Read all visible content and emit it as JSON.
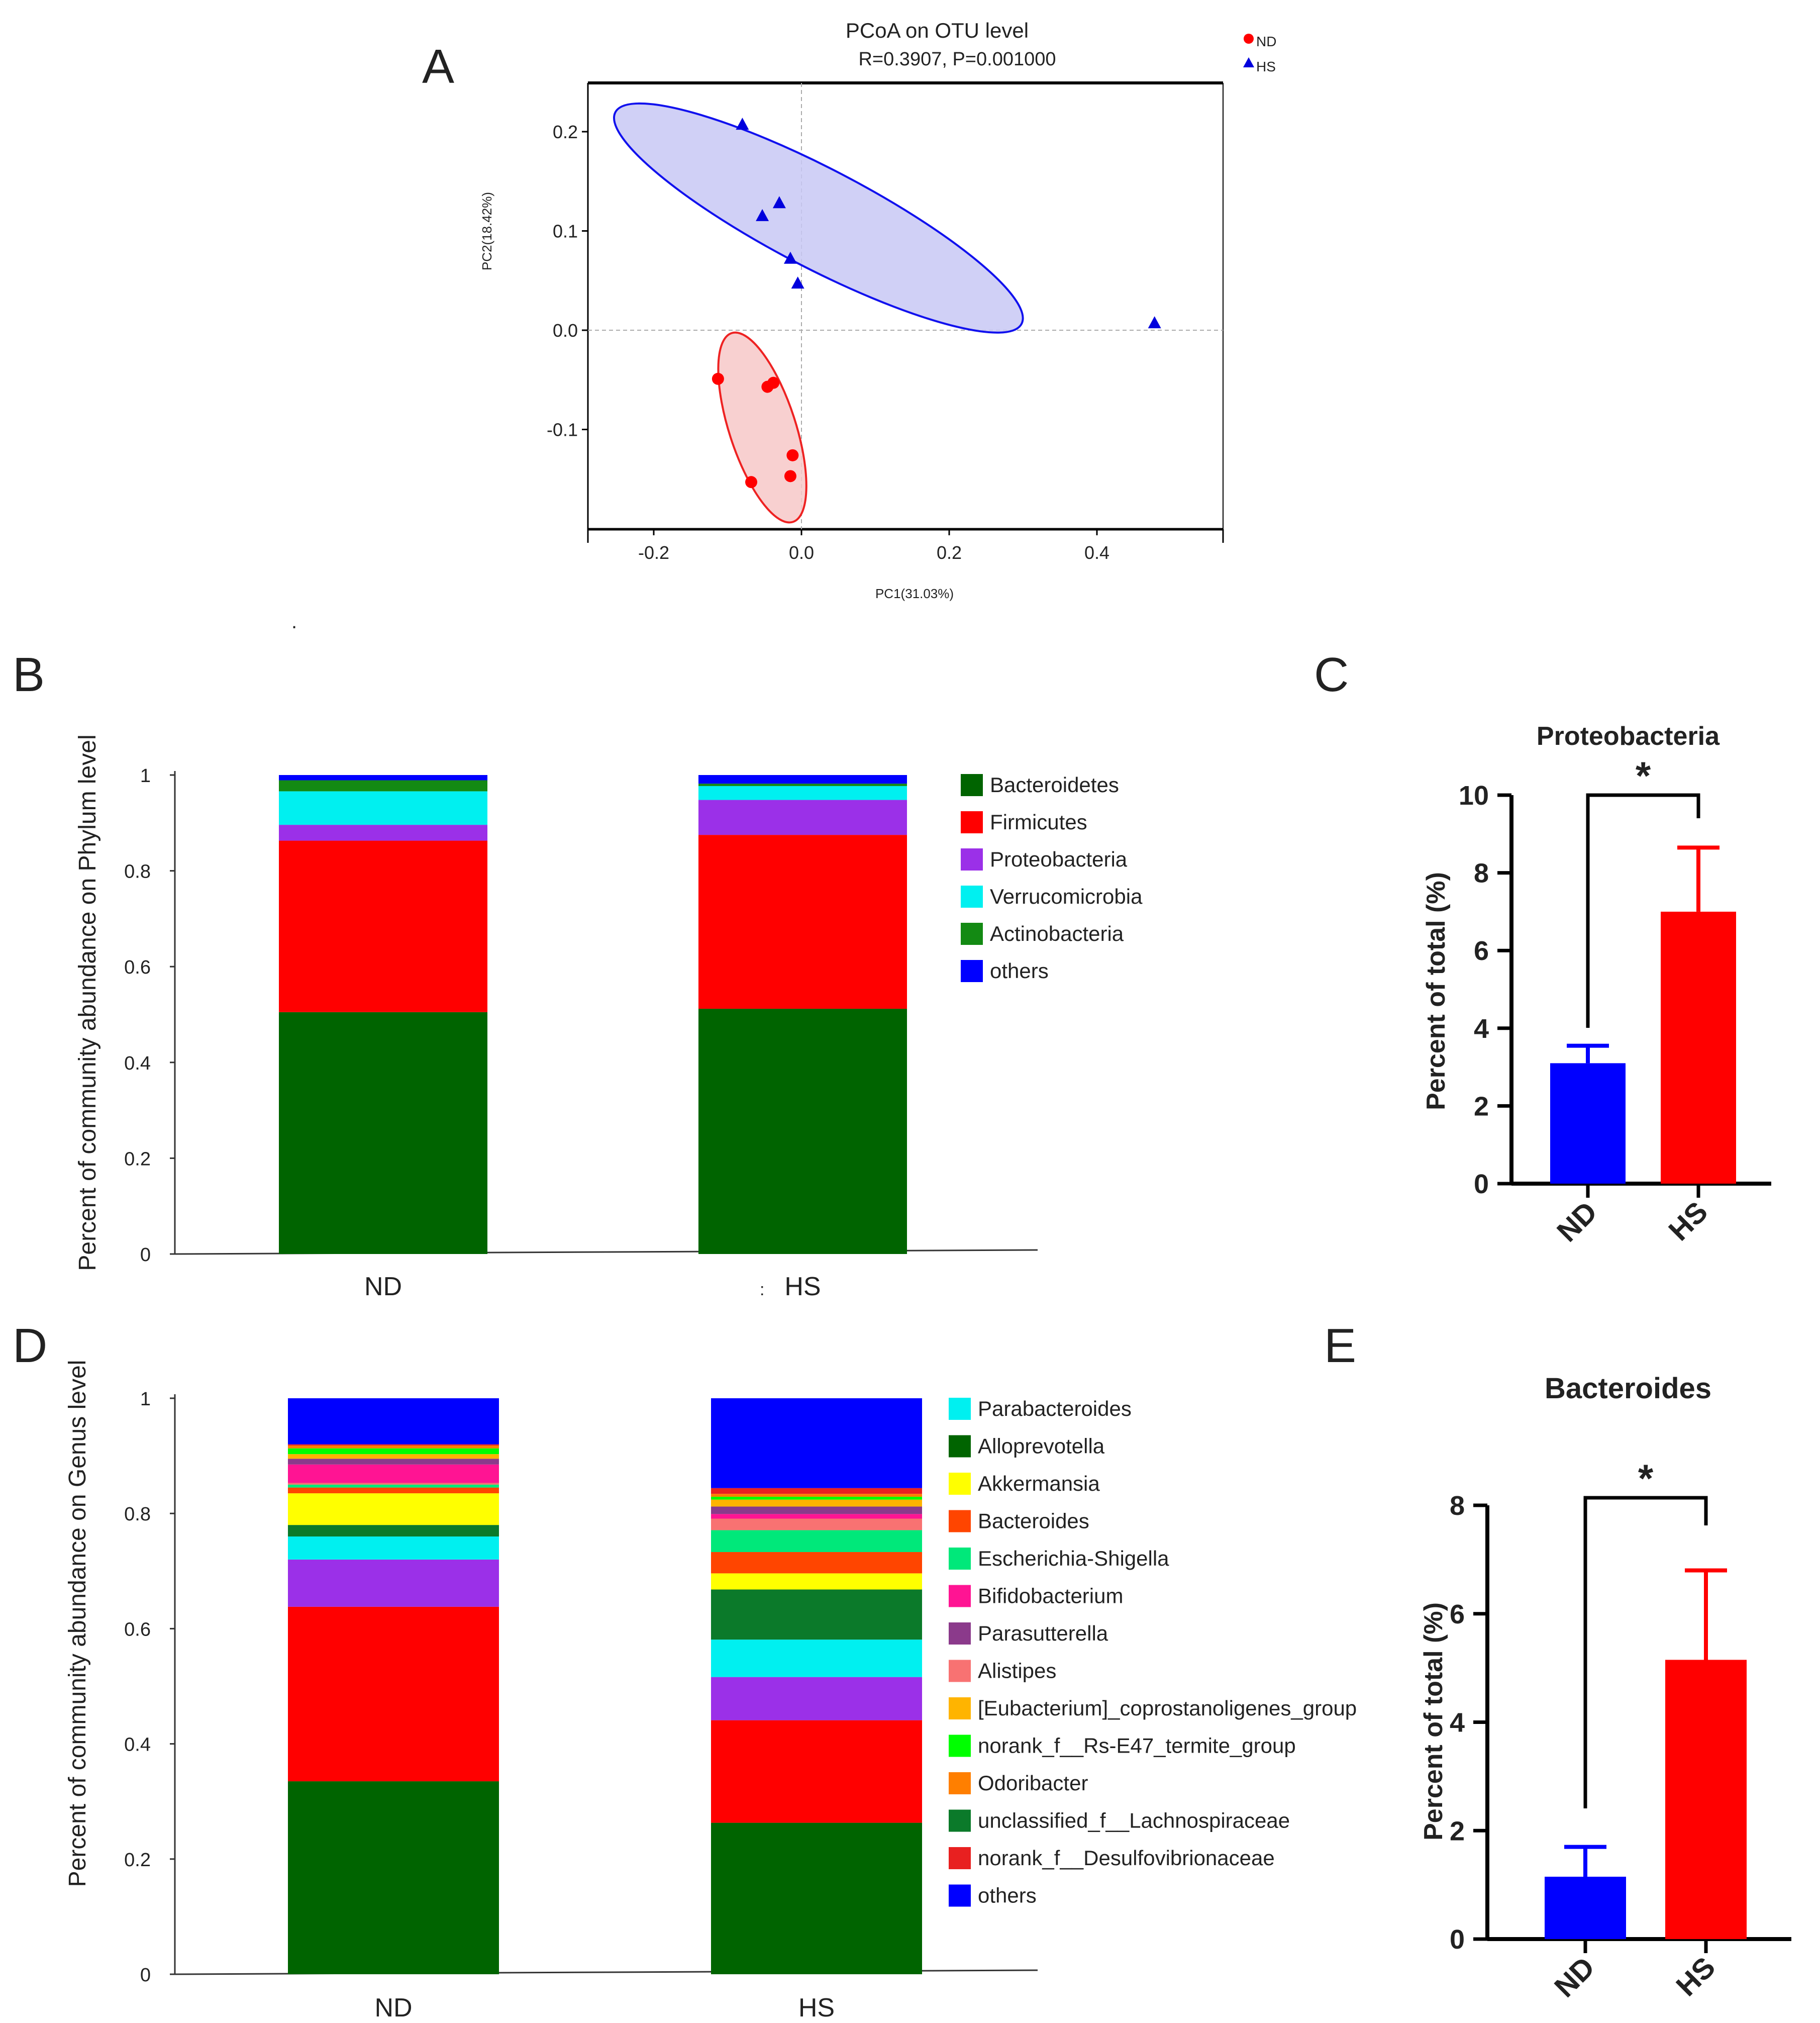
{
  "chart_data": [
    {
      "panel": "A",
      "type": "scatter",
      "title": "PCoA on OTU level",
      "subtitle": "R=0.3907, P=0.001000",
      "xlabel": "PC1(31.03%)",
      "ylabel": "PC2(18.42%)",
      "xlim": [
        -0.29,
        0.57
      ],
      "ylim": [
        -0.2,
        0.25
      ],
      "xticks": [
        -0.2,
        0.0,
        0.2,
        0.4
      ],
      "xtick_labels": [
        "-0.2",
        "0.0",
        "0.2",
        "0.4"
      ],
      "yticks": [
        0.2,
        0.1,
        0.0,
        -0.1
      ],
      "ytick_labels": [
        "0.2",
        "0.1",
        "0.0",
        "-0.1"
      ],
      "legend_position": "top-right",
      "series": [
        {
          "name": "ND",
          "marker": "circle",
          "color": "#ff0000",
          "points": [
            [
              -0.113,
              -0.049
            ],
            [
              -0.046,
              -0.057
            ],
            [
              -0.038,
              -0.053
            ],
            [
              -0.012,
              -0.126
            ],
            [
              -0.068,
              -0.153
            ],
            [
              -0.015,
              -0.147
            ]
          ],
          "ellipse": {
            "center": [
              -0.053,
              -0.098
            ],
            "semi_axes": [
              0.045,
              0.1
            ],
            "rotation_deg": 18,
            "fill": "#f7c8c8",
            "stroke": "#ee2222"
          }
        },
        {
          "name": "HS",
          "marker": "triangle",
          "color": "#0000dd",
          "points": [
            [
              -0.08,
              0.207
            ],
            [
              -0.03,
              0.128
            ],
            [
              -0.053,
              0.115
            ],
            [
              -0.015,
              0.072
            ],
            [
              -0.005,
              0.047
            ],
            [
              0.478,
              0.007
            ]
          ],
          "ellipse": {
            "center": [
              0.023,
              0.113
            ],
            "semi_axes": [
              0.31,
              0.05
            ],
            "rotation_deg": 27.5,
            "fill": "#c8c8f5",
            "stroke": "#1111ee"
          }
        }
      ]
    },
    {
      "panel": "B",
      "type": "bar",
      "stacked": true,
      "categories": [
        "ND",
        "HS"
      ],
      "ylabel": "Percent of community abundance on Phylum level",
      "ylim": [
        0,
        1
      ],
      "yticks": [
        0,
        0.2,
        0.4,
        0.6,
        0.8,
        1
      ],
      "ytick_labels": [
        "0",
        "0.2",
        "0.4",
        "0.6",
        "0.8",
        "1"
      ],
      "legend_position": "right",
      "series": [
        {
          "name": "Bacteroidetes",
          "color": "#006400",
          "values": [
            0.505,
            0.512
          ]
        },
        {
          "name": "Firmicutes",
          "color": "#ff0000",
          "values": [
            0.358,
            0.363
          ]
        },
        {
          "name": "Proteobacteria",
          "color": "#9b30e8",
          "values": [
            0.033,
            0.073
          ]
        },
        {
          "name": "Verrucomicrobia",
          "color": "#00f0f0",
          "values": [
            0.07,
            0.029
          ]
        },
        {
          "name": "Actinobacteria",
          "color": "#138a13",
          "values": [
            0.023,
            0.005
          ]
        },
        {
          "name": "others",
          "color": "#0000ff",
          "values": [
            0.011,
            0.018
          ]
        }
      ]
    },
    {
      "panel": "C",
      "type": "bar",
      "title": "Proteobacteria",
      "categories": [
        "ND",
        "HS"
      ],
      "values": [
        3.1,
        7.0
      ],
      "errors": [
        0.45,
        1.65
      ],
      "colors": [
        "#0000ff",
        "#ff0000"
      ],
      "ylabel": "Percent of total (%)",
      "ylim": [
        0,
        10
      ],
      "yticks": [
        0,
        2,
        4,
        6,
        8,
        10
      ],
      "ytick_labels": [
        "0",
        "2",
        "4",
        "6",
        "8",
        "10"
      ],
      "annotation": "*"
    },
    {
      "panel": "D",
      "type": "bar",
      "stacked": true,
      "categories": [
        "ND",
        "HS"
      ],
      "ylabel": "Percent of community abundance on Genus level",
      "ylim": [
        0,
        1
      ],
      "yticks": [
        0,
        0.2,
        0.4,
        0.6,
        0.8,
        1
      ],
      "ytick_labels": [
        "0",
        "0.2",
        "0.4",
        "0.6",
        "0.8",
        "1"
      ],
      "legend_position": "right",
      "stack_order": [
        "Alloprevotella",
        "Firmicutes",
        "Proteobacteria",
        "Parabacteroides",
        "unclassified_f__Lachnospiraceae",
        "Akkermansia",
        "Bacteroides",
        "Escherichia-Shigella",
        "Alistipes",
        "Bifidobacterium",
        "Parasutterella",
        "[Eubacterium]_coprostanoligenes_group",
        "norank_f__Rs-E47_termite_group",
        "Odoribacter",
        "norank_f__Desulfovibrionaceae",
        "others"
      ],
      "series": [
        {
          "name": "Parabacteroides",
          "color": "#00f0f0",
          "values": [
            0.04,
            0.065
          ]
        },
        {
          "name": "Alloprevotella",
          "color": "#006400",
          "values": [
            0.335,
            0.263
          ]
        },
        {
          "name": "Akkermansia",
          "color": "#ffff00",
          "values": [
            0.055,
            0.028
          ]
        },
        {
          "name": "Bacteroides",
          "color": "#ff4500",
          "values": [
            0.01,
            0.037
          ]
        },
        {
          "name": "Escherichia-Shigella",
          "color": "#00e87a",
          "values": [
            0.005,
            0.038
          ]
        },
        {
          "name": "Bifidobacterium",
          "color": "#ff1493",
          "values": [
            0.032,
            0.008
          ]
        },
        {
          "name": "Parasutterella",
          "color": "#8b3a8b",
          "values": [
            0.01,
            0.013
          ]
        },
        {
          "name": "Alistipes",
          "color": "#f87272",
          "values": [
            0.003,
            0.02
          ]
        },
        {
          "name": "[Eubacterium]_coprostanoligenes_group",
          "color": "#ffb400",
          "values": [
            0.008,
            0.012
          ]
        },
        {
          "name": "norank_f__Rs-E47_termite_group",
          "color": "#00ff00",
          "values": [
            0.01,
            0.005
          ]
        },
        {
          "name": "Odoribacter",
          "color": "#ff7f00",
          "values": [
            0.005,
            0.005
          ]
        },
        {
          "name": "unclassified_f__Lachnospiraceae",
          "color": "#0b7a2a",
          "values": [
            0.02,
            0.087
          ]
        },
        {
          "name": "norank_f__Desulfovibrionaceae",
          "color": "#e82020",
          "values": [
            0.002,
            0.01
          ]
        },
        {
          "name": "others",
          "color": "#0000ff",
          "values": [
            0.077,
            0.107
          ]
        }
      ],
      "extra_segments": [
        {
          "color": "#ff0000",
          "values": [
            0.303,
            0.178
          ]
        },
        {
          "color": "#9b30e8",
          "values": [
            0.082,
            0.075
          ]
        }
      ]
    },
    {
      "panel": "E",
      "type": "bar",
      "title": "Bacteroides",
      "categories": [
        "ND",
        "HS"
      ],
      "values": [
        1.15,
        5.15
      ],
      "errors": [
        0.55,
        1.65
      ],
      "colors": [
        "#0000ff",
        "#ff0000"
      ],
      "ylabel": "Percent of total (%)",
      "ylim": [
        0,
        8
      ],
      "yticks": [
        0,
        2,
        4,
        6,
        8
      ],
      "ytick_labels": [
        "0",
        "2",
        "4",
        "6",
        "8"
      ],
      "annotation": "*"
    }
  ],
  "panel_labels": {
    "a": "A",
    "b": "B",
    "c": "C",
    "d": "D",
    "e": "E"
  },
  "stray_marks": {
    "dot": ".",
    "colon": ":"
  }
}
